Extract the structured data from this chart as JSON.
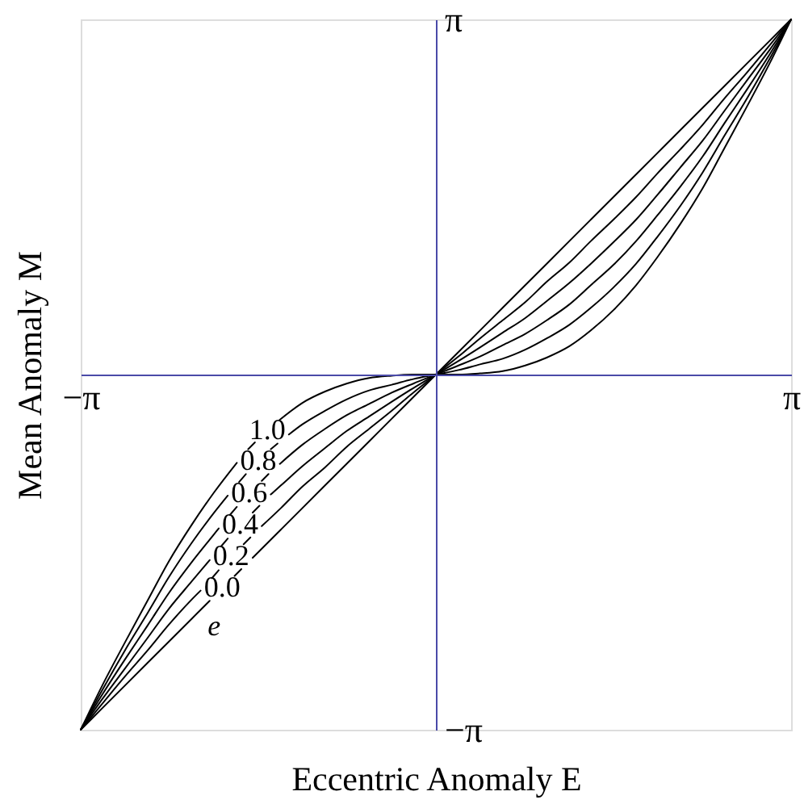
{
  "chart_data": {
    "type": "line",
    "xlabel": "Eccentric Anomaly E",
    "ylabel": "Mean Anomaly M",
    "legend_title": "e",
    "xlim": [
      -3.14,
      3.14
    ],
    "ylim": [
      -3.14,
      3.14
    ],
    "xticks": [
      {
        "value": -3.14,
        "label": "−π"
      },
      {
        "value": 3.14,
        "label": "π"
      }
    ],
    "yticks": [
      {
        "value": -3.14,
        "label": "−π"
      },
      {
        "value": 3.14,
        "label": "π"
      }
    ],
    "line_style": "solid",
    "series": [
      {
        "name": "1.0",
        "color": "#000000",
        "x": [
          -3.14,
          -2.95,
          -2.75,
          -2.55,
          -2.36,
          -2.16,
          -1.96,
          -1.76,
          -1.71,
          -1.66,
          -1.6,
          -1.49,
          -1.38,
          -1.18,
          -0.98,
          -0.79,
          -0.59,
          -0.39,
          -0.2,
          0,
          0.2,
          0.39,
          0.59,
          0.79,
          0.98,
          1.18,
          1.37,
          1.57,
          1.77,
          1.96,
          2.16,
          2.36,
          2.55,
          2.75,
          2.95,
          3.14
        ],
        "values": [
          -3.14,
          -2.75,
          -2.37,
          -2,
          -1.65,
          -1.33,
          -1.04,
          -0.78,
          null,
          -0.66,
          -0.6,
          null,
          -0.4,
          -0.25,
          -0.15,
          -0.08,
          -0.03,
          -0.01,
          0,
          0,
          0,
          0.01,
          0.03,
          0.08,
          0.15,
          0.25,
          0.39,
          0.57,
          0.79,
          1.04,
          1.33,
          1.65,
          2,
          2.37,
          2.75,
          3.14
        ]
      },
      {
        "name": "0.8",
        "color": "#000000",
        "x": [
          -3.14,
          -2.95,
          -2.75,
          -2.55,
          -2.36,
          -2.16,
          -1.96,
          -1.84,
          -1.79,
          -1.74,
          -1.68,
          -1.57,
          -1.46,
          -1.4,
          -1.35,
          -1.3,
          -1.18,
          -0.98,
          -0.79,
          -0.59,
          -0.39,
          -0.2,
          0,
          0.2,
          0.39,
          0.59,
          0.79,
          0.98,
          1.18,
          1.37,
          1.57,
          1.77,
          1.96,
          2.16,
          2.36,
          2.55,
          2.75,
          2.95,
          3.14
        ],
        "values": [
          -3.14,
          -2.79,
          -2.44,
          -2.11,
          -1.79,
          -1.49,
          -1.22,
          -1.07,
          null,
          -0.95,
          -0.88,
          null,
          -0.66,
          -0.61,
          null,
          -0.53,
          -0.44,
          -0.32,
          -0.22,
          -0.14,
          -0.09,
          -0.04,
          0,
          0.04,
          0.09,
          0.14,
          0.22,
          0.32,
          0.44,
          0.59,
          0.77,
          0.98,
          1.22,
          1.49,
          1.79,
          2.11,
          2.44,
          2.79,
          3.14
        ]
      },
      {
        "name": "0.6",
        "color": "#000000",
        "x": [
          -3.14,
          -2.95,
          -2.75,
          -2.55,
          -2.36,
          -2.16,
          -1.96,
          -1.92,
          -1.87,
          -1.82,
          -1.76,
          -1.65,
          -1.54,
          -1.48,
          -1.43,
          -1.38,
          -1.18,
          -0.98,
          -0.79,
          -0.59,
          -0.39,
          -0.2,
          0,
          0.2,
          0.39,
          0.59,
          0.79,
          0.98,
          1.18,
          1.37,
          1.57,
          1.77,
          1.96,
          2.16,
          2.36,
          2.55,
          2.75,
          2.95,
          3.14
        ],
        "values": [
          -3.14,
          -2.83,
          -2.52,
          -2.22,
          -1.93,
          -1.66,
          -1.41,
          -1.36,
          null,
          -1.24,
          -1.17,
          null,
          -0.94,
          -0.88,
          null,
          -0.79,
          -0.62,
          -0.48,
          -0.36,
          -0.26,
          -0.16,
          -0.08,
          0,
          0.08,
          0.16,
          0.26,
          0.36,
          0.48,
          0.62,
          0.79,
          0.97,
          1.18,
          1.41,
          1.66,
          1.93,
          2.22,
          2.52,
          2.83,
          3.14
        ]
      },
      {
        "name": "0.4",
        "color": "#000000",
        "x": [
          -3.14,
          -2.95,
          -2.75,
          -2.55,
          -2.36,
          -2.16,
          -2,
          -1.95,
          -1.9,
          -1.84,
          -1.73,
          -1.62,
          -1.56,
          -1.51,
          -1.46,
          -1.37,
          -1.18,
          -0.98,
          -0.79,
          -0.59,
          -0.39,
          -0.2,
          0,
          0.2,
          0.39,
          0.59,
          0.79,
          0.98,
          1.18,
          1.37,
          1.57,
          1.77,
          1.96,
          2.16,
          2.36,
          2.55,
          2.75,
          2.95,
          3.14
        ],
        "values": [
          -3.14,
          -2.87,
          -2.6,
          -2.33,
          -2.07,
          -1.83,
          -1.64,
          null,
          -1.52,
          -1.45,
          null,
          -1.22,
          -1.16,
          null,
          -1.06,
          -0.98,
          -0.81,
          -0.65,
          -0.5,
          -0.37,
          -0.24,
          -0.12,
          0,
          0.12,
          0.24,
          0.37,
          0.5,
          0.65,
          0.81,
          0.98,
          1.17,
          1.37,
          1.59,
          1.83,
          2.07,
          2.33,
          2.6,
          2.87,
          3.14
        ]
      },
      {
        "name": "0.2",
        "color": "#000000",
        "x": [
          -3.14,
          -2.95,
          -2.75,
          -2.55,
          -2.36,
          -2.16,
          -2.08,
          -2.03,
          -1.98,
          -1.92,
          -1.81,
          -1.7,
          -1.64,
          -1.6,
          -1.54,
          -1.37,
          -1.18,
          -0.98,
          -0.79,
          -0.59,
          -0.39,
          -0.2,
          0,
          0.2,
          0.39,
          0.59,
          0.79,
          0.98,
          1.18,
          1.37,
          1.57,
          1.77,
          1.96,
          2.16,
          2.36,
          2.55,
          2.75,
          2.95,
          3.14
        ],
        "values": [
          -3.14,
          -2.91,
          -2.67,
          -2.44,
          -2.21,
          -1.99,
          -1.91,
          null,
          -1.8,
          -1.73,
          null,
          -1.5,
          -1.44,
          null,
          -1.34,
          -1.18,
          -0.99,
          -0.82,
          -0.64,
          -0.48,
          -0.32,
          -0.16,
          0,
          0.16,
          0.32,
          0.48,
          0.64,
          0.82,
          0.99,
          1.18,
          1.37,
          1.57,
          1.78,
          1.99,
          2.21,
          2.44,
          2.67,
          2.91,
          3.14
        ]
      },
      {
        "name": "0.0",
        "color": "#000000",
        "x": [
          -3.14,
          -2.95,
          -2.75,
          -2.55,
          -2.36,
          -2.16,
          -2,
          -1.89,
          -1.78,
          -1.72,
          -1.67,
          -1.62,
          -1.57,
          -1.37,
          -1.18,
          -0.98,
          -0.79,
          -0.59,
          -0.39,
          -0.2,
          0,
          0.2,
          0.39,
          0.59,
          0.79,
          0.98,
          1.18,
          1.37,
          1.57,
          1.77,
          1.96,
          2.16,
          2.36,
          2.55,
          2.75,
          2.95,
          3.14
        ],
        "values": [
          -3.14,
          -2.95,
          -2.75,
          -2.55,
          -2.36,
          -2.16,
          -2,
          null,
          -1.78,
          -1.72,
          null,
          -1.62,
          -1.57,
          -1.37,
          -1.18,
          -0.98,
          -0.79,
          -0.59,
          -0.39,
          -0.2,
          0,
          0.2,
          0.39,
          0.59,
          0.79,
          0.98,
          1.18,
          1.37,
          1.57,
          1.77,
          1.96,
          2.16,
          2.36,
          2.55,
          2.75,
          2.95,
          3.14
        ]
      }
    ]
  }
}
